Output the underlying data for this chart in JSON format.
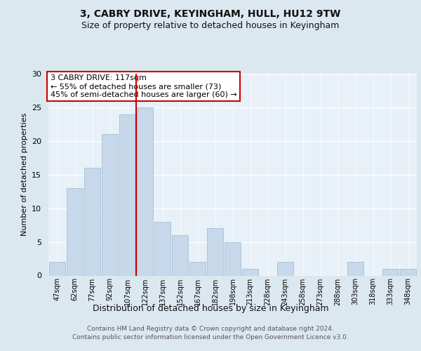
{
  "title1": "3, CABRY DRIVE, KEYINGHAM, HULL, HU12 9TW",
  "title2": "Size of property relative to detached houses in Keyingham",
  "xlabel": "Distribution of detached houses by size in Keyingham",
  "ylabel": "Number of detached properties",
  "bin_labels": [
    "47sqm",
    "62sqm",
    "77sqm",
    "92sqm",
    "107sqm",
    "122sqm",
    "137sqm",
    "152sqm",
    "167sqm",
    "182sqm",
    "198sqm",
    "213sqm",
    "228sqm",
    "243sqm",
    "258sqm",
    "273sqm",
    "288sqm",
    "303sqm",
    "318sqm",
    "333sqm",
    "348sqm"
  ],
  "bar_values": [
    2,
    13,
    16,
    21,
    24,
    25,
    8,
    6,
    2,
    7,
    5,
    1,
    0,
    2,
    0,
    0,
    0,
    2,
    0,
    1,
    1
  ],
  "bar_color": "#c6d8ea",
  "bar_edgecolor": "#9ab8d0",
  "property_line_x": 4.5,
  "ylim": [
    0,
    30
  ],
  "yticks": [
    0,
    5,
    10,
    15,
    20,
    25,
    30
  ],
  "annotation_text": "3 CABRY DRIVE: 117sqm\n← 55% of detached houses are smaller (73)\n45% of semi-detached houses are larger (60) →",
  "annotation_box_facecolor": "#ffffff",
  "annotation_box_edgecolor": "#cc0000",
  "footer1": "Contains HM Land Registry data © Crown copyright and database right 2024.",
  "footer2": "Contains public sector information licensed under the Open Government Licence v3.0.",
  "fig_bg_color": "#dce8f0",
  "plot_bg_color": "#e8f0f8"
}
